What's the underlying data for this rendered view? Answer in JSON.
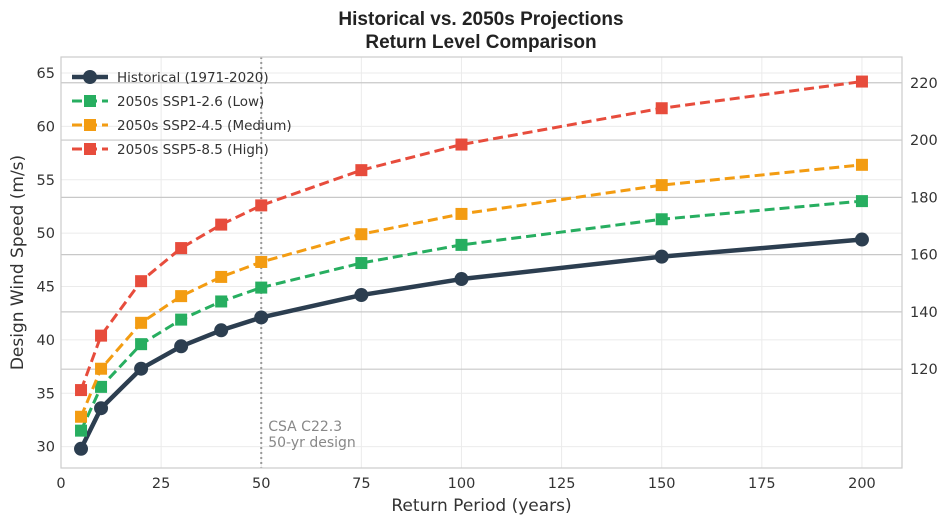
{
  "chart_data": {
    "type": "line",
    "title_lines": [
      "Historical vs. 2050s Projections",
      "Return Level Comparison"
    ],
    "xlabel": "Return Period (years)",
    "ylabel": "Design Wind Speed (m/s)",
    "xlim": [
      0,
      210
    ],
    "ylim": [
      28,
      66.5
    ],
    "y2lim": [
      85.5,
      229.0
    ],
    "x_ticks": [
      "0",
      "25",
      "50",
      "75",
      "100",
      "125",
      "150",
      "175",
      "200"
    ],
    "y_ticks": [
      "30",
      "35",
      "40",
      "45",
      "50",
      "55",
      "60",
      "65"
    ],
    "y2_ticks": [
      "120",
      "140",
      "160",
      "180",
      "200",
      "220"
    ],
    "grid": true,
    "legend_position": "top-left",
    "x": [
      5,
      10,
      20,
      30,
      40,
      50,
      75,
      100,
      150,
      200
    ],
    "series": [
      {
        "name": "Historical (1971-2020)",
        "color": "#2c3e50",
        "style": "solid",
        "marker": "circle",
        "values": [
          29.8,
          33.6,
          37.3,
          39.4,
          40.9,
          42.1,
          44.2,
          45.7,
          47.8,
          49.4
        ]
      },
      {
        "name": "2050s SSP1-2.6 (Low)",
        "color": "#27ae60",
        "style": "dashed",
        "marker": "square",
        "values": [
          31.5,
          35.6,
          39.6,
          41.9,
          43.6,
          44.9,
          47.2,
          48.9,
          51.3,
          53.0
        ]
      },
      {
        "name": "2050s SSP2-4.5 (Medium)",
        "color": "#f39c12",
        "style": "dashed",
        "marker": "square",
        "values": [
          32.8,
          37.3,
          41.6,
          44.1,
          45.9,
          47.3,
          49.9,
          51.8,
          54.5,
          56.4
        ]
      },
      {
        "name": "2050s SSP5-8.5 (High)",
        "color": "#e74c3c",
        "style": "dashed",
        "marker": "square",
        "values": [
          35.3,
          40.4,
          45.5,
          48.6,
          50.8,
          52.6,
          55.9,
          58.3,
          61.7,
          64.2
        ]
      }
    ],
    "annotation": {
      "x": 50,
      "lines": [
        "CSA C22.3",
        "50-yr design"
      ],
      "color": "#888888"
    }
  }
}
